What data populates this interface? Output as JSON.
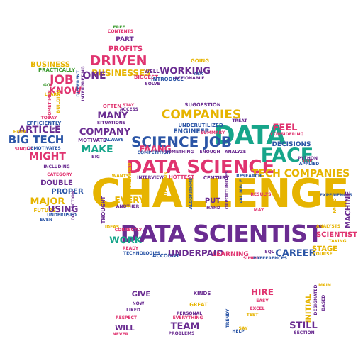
{
  "palette": {
    "gold": "#e6b400",
    "purple": "#6a2c91",
    "teal": "#16a58a",
    "pink": "#e0336f",
    "blue": "#2b55a6",
    "orange": "#f08a24",
    "cyan": "#14a7c9",
    "green": "#3c9b2f",
    "red": "#c8261f"
  },
  "words": [
    {
      "id": "challenge",
      "text": "CHALLENGE",
      "color": "gold",
      "size": "xl"
    },
    {
      "id": "data-scientist",
      "text": "DATA SCIENTIST",
      "color": "purple",
      "size": "lg"
    },
    {
      "id": "data-science",
      "text": "DATA SCIENCE",
      "color": "pink",
      "size": "md"
    },
    {
      "id": "data",
      "text": "DATA",
      "color": "teal",
      "size": "lg"
    },
    {
      "id": "face",
      "text": "FACE",
      "color": "teal",
      "size": "md"
    },
    {
      "id": "science-job",
      "text": "SCIENCE JOB",
      "color": "blue",
      "size": "sm"
    },
    {
      "id": "companies",
      "text": "COMPANIES",
      "color": "gold",
      "size": "sm"
    },
    {
      "id": "tech-companies",
      "text": "TECH COMPANIES",
      "color": "gold",
      "size": "sm"
    },
    {
      "id": "driven",
      "text": "DRIVEN",
      "color": "pink",
      "size": "sm"
    },
    {
      "id": "businesses",
      "text": "BUSINESSES",
      "color": "gold",
      "size": "xs"
    },
    {
      "id": "working",
      "text": "WORKING",
      "color": "purple",
      "size": "xs"
    },
    {
      "id": "one",
      "text": "ONE",
      "color": "purple",
      "size": "xs"
    },
    {
      "id": "profits",
      "text": "PROFITS",
      "color": "pink",
      "size": "xxs"
    },
    {
      "id": "part",
      "text": "PART",
      "color": "purple",
      "size": "xxs"
    },
    {
      "id": "free",
      "text": "FREE",
      "color": "green",
      "size": "xxxs"
    },
    {
      "id": "contents",
      "text": "CONTENTS",
      "color": "pink",
      "size": "xxxs"
    },
    {
      "id": "business",
      "text": "BUSINESS",
      "color": "gold",
      "size": "xxs"
    },
    {
      "id": "practically",
      "text": "PRACTICALLY",
      "color": "green",
      "size": "xxxs"
    },
    {
      "id": "job",
      "text": "JOB",
      "color": "pink",
      "size": "sm"
    },
    {
      "id": "know",
      "text": "KNOW",
      "color": "pink",
      "size": "xs"
    },
    {
      "id": "go",
      "text": "GO",
      "color": "green",
      "size": "xxxs"
    },
    {
      "id": "learn",
      "text": "LEARN",
      "color": "gold",
      "size": "xxxs"
    },
    {
      "id": "different",
      "text": "DIFFERENT",
      "color": "blue",
      "size": "xxxs"
    },
    {
      "id": "interpreting",
      "text": "INTERPRETING",
      "color": "purple",
      "size": "xxxs"
    },
    {
      "id": "sometimes",
      "text": "SOMETIMES",
      "color": "pink",
      "size": "xxxs"
    },
    {
      "id": "building",
      "text": "BUILDING",
      "color": "gold",
      "size": "xxxs"
    },
    {
      "id": "well",
      "text": "WELL",
      "color": "purple",
      "size": "xxxs"
    },
    {
      "id": "biggest",
      "text": "BIGGEST",
      "color": "pink",
      "size": "xxxs"
    },
    {
      "id": "solve",
      "text": "SOLVE",
      "color": "purple",
      "size": "xxxs"
    },
    {
      "id": "introduce",
      "text": "INTRODUCE",
      "color": "blue",
      "size": "xxxs"
    },
    {
      "id": "actionable",
      "text": "ACTIONABLE",
      "color": "purple",
      "size": "xxxs"
    },
    {
      "id": "ask",
      "text": "ASK",
      "color": "blue",
      "size": "xxxs"
    },
    {
      "id": "going",
      "text": "GOING",
      "color": "gold",
      "size": "xxxs"
    },
    {
      "id": "today",
      "text": "TODAY",
      "color": "pink",
      "size": "xxxs"
    },
    {
      "id": "efficiently",
      "text": "EFFICIENTLY",
      "color": "blue",
      "size": "xxxs"
    },
    {
      "id": "article",
      "text": "ARTICLE",
      "color": "purple",
      "size": "xs"
    },
    {
      "id": "let",
      "text": "LET",
      "color": "purple",
      "size": "xxxs"
    },
    {
      "id": "hope",
      "text": "HOPE",
      "color": "gold",
      "size": "xxxs"
    },
    {
      "id": "big-tech",
      "text": "BIG TECH",
      "color": "blue",
      "size": "sm"
    },
    {
      "id": "demotivates",
      "text": "DEMOTIVATES",
      "color": "blue",
      "size": "xxxs"
    },
    {
      "id": "single",
      "text": "SINGLE",
      "color": "pink",
      "size": "xxxs"
    },
    {
      "id": "might",
      "text": "MIGHT",
      "color": "pink",
      "size": "xs"
    },
    {
      "id": "many",
      "text": "MANY",
      "color": "purple",
      "size": "xs"
    },
    {
      "id": "often",
      "text": "OFTEN",
      "color": "pink",
      "size": "xxxs"
    },
    {
      "id": "stay",
      "text": "STAY",
      "color": "pink",
      "size": "xxxs"
    },
    {
      "id": "access",
      "text": "ACCESS",
      "color": "purple",
      "size": "xxxs"
    },
    {
      "id": "situations",
      "text": "SITUATIONS",
      "color": "purple",
      "size": "xxxs"
    },
    {
      "id": "company",
      "text": "COMPANY",
      "color": "purple",
      "size": "xs"
    },
    {
      "id": "motivate",
      "text": "MOTIVATE",
      "color": "purple",
      "size": "xxxs"
    },
    {
      "id": "always",
      "text": "ALWAYS",
      "color": "blue",
      "size": "xxxs"
    },
    {
      "id": "make",
      "text": "MAKE",
      "color": "teal",
      "size": "xs"
    },
    {
      "id": "big",
      "text": "BIG",
      "color": "purple",
      "size": "xxxs"
    },
    {
      "id": "suggestion",
      "text": "SUGGESTION",
      "color": "purple",
      "size": "xxxs"
    },
    {
      "id": "underutilized",
      "text": "UNDERUTILIZED",
      "color": "blue",
      "size": "xxxs"
    },
    {
      "id": "treat",
      "text": "TREAT",
      "color": "purple",
      "size": "xxxs"
    },
    {
      "id": "engineer",
      "text": "ENGINEER",
      "color": "blue",
      "size": "xxs"
    },
    {
      "id": "summary",
      "text": "SUMMARY",
      "color": "pink",
      "size": "xxxs"
    },
    {
      "id": "faang",
      "text": "FAANG",
      "color": "pink",
      "size": "xs"
    },
    {
      "id": "competition",
      "text": "COMPETITION",
      "color": "blue",
      "size": "xxxs"
    },
    {
      "id": "something",
      "text": "SOMETHING",
      "color": "purple",
      "size": "xxxs"
    },
    {
      "id": "enough",
      "text": "ENOUGH",
      "color": "purple",
      "size": "xxxs"
    },
    {
      "id": "analyze",
      "text": "ANALYZE",
      "color": "purple",
      "size": "xxxs"
    },
    {
      "id": "feel",
      "text": "FEEL",
      "color": "pink",
      "size": "xs"
    },
    {
      "id": "considering",
      "text": "CONSIDERING",
      "color": "pink",
      "size": "xxxs"
    },
    {
      "id": "decisions",
      "text": "DECISIONS",
      "color": "blue",
      "size": "xxs"
    },
    {
      "id": "python",
      "text": "PYTHON",
      "color": "purple",
      "size": "xxxs"
    },
    {
      "id": "use",
      "text": "USE",
      "color": "pink",
      "size": "xxxs"
    },
    {
      "id": "applied",
      "text": "APPLIED",
      "color": "blue",
      "size": "xxxs"
    },
    {
      "id": "including",
      "text": "INCLUDING",
      "color": "purple",
      "size": "xxxs"
    },
    {
      "id": "category",
      "text": "CATEGORY",
      "color": "pink",
      "size": "xxxs"
    },
    {
      "id": "double",
      "text": "DOUBLE",
      "color": "purple",
      "size": "xxs"
    },
    {
      "id": "proper",
      "text": "PROPER",
      "color": "blue",
      "size": "xxs"
    },
    {
      "id": "major",
      "text": "MAJOR",
      "color": "gold",
      "size": "xs"
    },
    {
      "id": "future",
      "text": "FUTURE",
      "color": "gold",
      "size": "xxxs"
    },
    {
      "id": "using",
      "text": "USING",
      "color": "purple",
      "size": "xs"
    },
    {
      "id": "collection",
      "text": "COLLECTION",
      "color": "purple",
      "size": "xxxs"
    },
    {
      "id": "underused",
      "text": "UNDERUSED",
      "color": "blue",
      "size": "xxxs"
    },
    {
      "id": "even",
      "text": "EVEN",
      "color": "blue",
      "size": "xxxs"
    },
    {
      "id": "wants",
      "text": "WANTS",
      "color": "gold",
      "size": "xxxs"
    },
    {
      "id": "prepared",
      "text": "PREPARED",
      "color": "gold",
      "size": "xxxs"
    },
    {
      "id": "interview",
      "text": "INTERVIEW",
      "color": "purple",
      "size": "xxxs"
    },
    {
      "id": "hottest",
      "text": "HOTTEST",
      "color": "pink",
      "size": "xxxs"
    },
    {
      "id": "century",
      "text": "CENTURY",
      "color": "purple",
      "size": "xxxs"
    },
    {
      "id": "research",
      "text": "RESEARCH",
      "color": "blue",
      "size": "xxxs"
    },
    {
      "id": "questions",
      "text": "QUESTIONS",
      "color": "gold",
      "size": "xxxs"
    },
    {
      "id": "algorithms",
      "text": "ALGORITHMS",
      "color": "blue",
      "size": "xxxs"
    },
    {
      "id": "opportunities",
      "text": "OPPORTUNITIES",
      "color": "purple",
      "size": "xxxs"
    },
    {
      "id": "valuable",
      "text": "VALUABLE",
      "color": "blue",
      "size": "xxxs"
    },
    {
      "id": "results",
      "text": "RESULTS",
      "color": "pink",
      "size": "xxxs"
    },
    {
      "id": "experiences",
      "text": "EXPERIENCES",
      "color": "blue",
      "size": "xxxs"
    },
    {
      "id": "faced",
      "text": "FACED",
      "color": "gold",
      "size": "xxxs"
    },
    {
      "id": "machine",
      "text": "MACHINE",
      "color": "purple",
      "size": "xxs"
    },
    {
      "id": "thought",
      "text": "THOUGHT",
      "color": "purple",
      "size": "xxxs"
    },
    {
      "id": "every",
      "text": "EVERY",
      "color": "gold",
      "size": "xs"
    },
    {
      "id": "another",
      "text": "ANOTHER",
      "color": "purple",
      "size": "xxxs"
    },
    {
      "id": "put",
      "text": "PUT",
      "color": "purple",
      "size": "xxs"
    },
    {
      "id": "hand",
      "text": "HAND",
      "color": "purple",
      "size": "xxxs"
    },
    {
      "id": "may",
      "text": "MAY",
      "color": "pink",
      "size": "xxxs"
    },
    {
      "id": "analysts",
      "text": "ANALYSTS",
      "color": "gold",
      "size": "xxxs"
    },
    {
      "id": "scientist",
      "text": "SCIENTIST",
      "color": "pink",
      "size": "xxs"
    },
    {
      "id": "taking",
      "text": "TAKING",
      "color": "gold",
      "size": "xxxs"
    },
    {
      "id": "ideas",
      "text": "IDEAS",
      "color": "gold",
      "size": "xxxs"
    },
    {
      "id": "correctly",
      "text": "CORRECTLY",
      "color": "pink",
      "size": "xxxs"
    },
    {
      "id": "work",
      "text": "WORK",
      "color": "teal",
      "size": "xs"
    },
    {
      "id": "ready",
      "text": "READY",
      "color": "pink",
      "size": "xxxs"
    },
    {
      "id": "technologies",
      "text": "TECHNOLOGIES",
      "color": "blue",
      "size": "xxxs"
    },
    {
      "id": "account",
      "text": "ACCOUNT",
      "color": "blue",
      "size": "xxxs"
    },
    {
      "id": "underpaid",
      "text": "UNDERPAID",
      "color": "purple",
      "size": "xs"
    },
    {
      "id": "learning",
      "text": "LEARNING",
      "color": "pink",
      "size": "xxs"
    },
    {
      "id": "sql",
      "text": "SQL",
      "color": "purple",
      "size": "xxxs"
    },
    {
      "id": "simply",
      "text": "SIMPLY",
      "color": "pink",
      "size": "xxxs"
    },
    {
      "id": "preferences",
      "text": "PREFERENCES",
      "color": "blue",
      "size": "xxxs"
    },
    {
      "id": "career",
      "text": "CAREER",
      "color": "blue",
      "size": "xs"
    },
    {
      "id": "stage",
      "text": "STAGE",
      "color": "gold",
      "size": "xxs"
    },
    {
      "id": "course",
      "text": "COURSE",
      "color": "gold",
      "size": "xxxs"
    },
    {
      "id": "give",
      "text": "GIVE",
      "color": "purple",
      "size": "xxs"
    },
    {
      "id": "now",
      "text": "NOW",
      "color": "purple",
      "size": "xxxs"
    },
    {
      "id": "liked",
      "text": "LIKED",
      "color": "purple",
      "size": "xxxs"
    },
    {
      "id": "respect",
      "text": "RESPECT",
      "color": "pink",
      "size": "xxxs"
    },
    {
      "id": "will",
      "text": "WILL",
      "color": "purple",
      "size": "xxs"
    },
    {
      "id": "never",
      "text": "NEVER",
      "color": "pink",
      "size": "xxxs"
    },
    {
      "id": "kinds",
      "text": "KINDS",
      "color": "purple",
      "size": "xxxs"
    },
    {
      "id": "great",
      "text": "GREAT",
      "color": "gold",
      "size": "xxxs"
    },
    {
      "id": "personal",
      "text": "PERSONAL",
      "color": "purple",
      "size": "xxxs"
    },
    {
      "id": "everything",
      "text": "EVERYTHING",
      "color": "pink",
      "size": "xxxs"
    },
    {
      "id": "team",
      "text": "TEAM",
      "color": "purple",
      "size": "xs"
    },
    {
      "id": "problems",
      "text": "PROBLEMS",
      "color": "purple",
      "size": "xxxs"
    },
    {
      "id": "trendy",
      "text": "TRENDY",
      "color": "blue",
      "size": "xxxs"
    },
    {
      "id": "help",
      "text": "HELP",
      "color": "blue",
      "size": "xxxs"
    },
    {
      "id": "say",
      "text": "SAY",
      "color": "gold",
      "size": "xxxs"
    },
    {
      "id": "test",
      "text": "TEST",
      "color": "gold",
      "size": "xxxs"
    },
    {
      "id": "excel",
      "text": "EXCEL",
      "color": "pink",
      "size": "xxxs"
    },
    {
      "id": "hire",
      "text": "HIRE",
      "color": "pink",
      "size": "xs"
    },
    {
      "id": "easy",
      "text": "EASY",
      "color": "pink",
      "size": "xxxs"
    },
    {
      "id": "main",
      "text": "MAIN",
      "color": "gold",
      "size": "xxxs"
    },
    {
      "id": "designated",
      "text": "DESIGNATED",
      "color": "purple",
      "size": "xxxs"
    },
    {
      "id": "based",
      "text": "BASED",
      "color": "purple",
      "size": "xxxs"
    },
    {
      "id": "initial",
      "text": "INITIAL",
      "color": "gold",
      "size": "xxs"
    },
    {
      "id": "still",
      "text": "STILL",
      "color": "purple",
      "size": "xs"
    },
    {
      "id": "section",
      "text": "SECTION",
      "color": "purple",
      "size": "xxxs"
    }
  ]
}
